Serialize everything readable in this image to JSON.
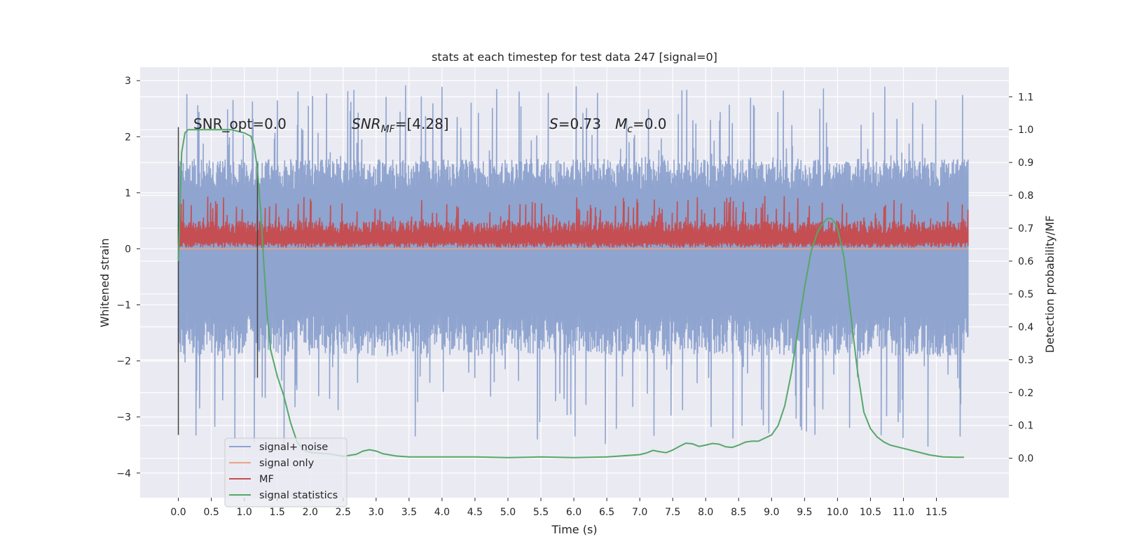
{
  "chart_data": {
    "type": "line",
    "title": "stats at each timestep for test data 247 [signal=0]",
    "xlabel": "Time (s)",
    "ylabel": "Whitened strain",
    "y2label": "Detection probability/MF",
    "xlim": [
      -0.58,
      12.6
    ],
    "ylim": [
      -4.44,
      3.24
    ],
    "y2lim": [
      -0.12,
      1.19
    ],
    "x_ticks": [
      0.0,
      0.5,
      1.0,
      1.5,
      2.0,
      2.5,
      3.0,
      3.5,
      4.0,
      4.5,
      5.0,
      5.5,
      6.0,
      6.5,
      7.0,
      7.5,
      8.0,
      8.5,
      9.0,
      9.5,
      10.0,
      10.5,
      11.0,
      11.5
    ],
    "y_ticks": [
      -4,
      -3,
      -2,
      -1,
      0,
      1,
      2,
      3
    ],
    "y_tick_labels": [
      "−4",
      "−3",
      "−2",
      "−1",
      "0",
      "1",
      "2",
      "3"
    ],
    "y2_ticks": [
      0.0,
      0.1,
      0.2,
      0.3,
      0.4,
      0.5,
      0.6,
      0.7,
      0.8,
      0.9,
      1.0,
      1.1
    ],
    "grid": true,
    "legend_position": "lower-left",
    "background": "#EAEAF2",
    "annotations": {
      "snr_opt": "SNR_opt=0.0",
      "snr_mf_base": "SNR",
      "snr_mf_sub": "MF",
      "snr_mf_rest": "=[4.28]",
      "s_base": "S",
      "s_rest": "=0.73",
      "mc_base": "M",
      "mc_sub": "c",
      "mc_rest": "=0.0"
    },
    "vlines": [
      {
        "x": 0.0,
        "y0": -3.32,
        "y1": 2.17
      },
      {
        "x": 1.2,
        "y0": -2.3,
        "y1": 1.52
      }
    ],
    "series": [
      {
        "name": "signal+ noise",
        "color": "#8FA4CF",
        "x_range": [
          0.0,
          11.98
        ],
        "typical_range": [
          -1.9,
          1.6
        ],
        "spike_range": [
          -3.6,
          2.92
        ]
      },
      {
        "name": "signal only",
        "color": "#E9A585",
        "x": [
          0.0,
          11.98
        ],
        "y": [
          0.0,
          0.0
        ]
      },
      {
        "name": "MF",
        "color": "#C44E52",
        "x_range": [
          0.0,
          11.98
        ],
        "typical_range": [
          0.02,
          0.5
        ],
        "spike_max": 0.95
      },
      {
        "name": "signal statistics",
        "color": "#55A868",
        "axis": "right",
        "x": [
          0.0,
          0.05,
          0.1,
          0.15,
          0.2,
          0.3,
          0.5,
          0.8,
          1.0,
          1.1,
          1.15,
          1.2,
          1.25,
          1.3,
          1.35,
          1.4,
          1.5,
          1.6,
          1.7,
          1.8,
          1.9,
          2.0,
          2.1,
          2.3,
          2.5,
          2.7,
          2.8,
          2.9,
          3.0,
          3.1,
          3.3,
          3.5,
          4.0,
          4.5,
          5.0,
          5.5,
          6.0,
          6.5,
          7.0,
          7.1,
          7.2,
          7.3,
          7.4,
          7.5,
          7.6,
          7.7,
          7.8,
          7.9,
          8.0,
          8.1,
          8.2,
          8.3,
          8.4,
          8.5,
          8.6,
          8.7,
          8.8,
          9.0,
          9.1,
          9.2,
          9.3,
          9.4,
          9.5,
          9.6,
          9.7,
          9.8,
          9.85,
          9.9,
          9.95,
          10.0,
          10.1,
          10.2,
          10.3,
          10.4,
          10.5,
          10.6,
          10.7,
          10.8,
          11.0,
          11.2,
          11.4,
          11.6,
          11.8,
          11.92
        ],
        "y": [
          0.6,
          0.93,
          0.99,
          1.0,
          1.0,
          1.0,
          1.0,
          1.0,
          0.99,
          0.98,
          0.95,
          0.88,
          0.75,
          0.58,
          0.43,
          0.33,
          0.25,
          0.19,
          0.11,
          0.05,
          0.025,
          0.018,
          0.016,
          0.013,
          0.006,
          0.012,
          0.022,
          0.026,
          0.022,
          0.014,
          0.007,
          0.004,
          0.004,
          0.004,
          0.002,
          0.004,
          0.002,
          0.004,
          0.011,
          0.016,
          0.024,
          0.02,
          0.017,
          0.025,
          0.036,
          0.046,
          0.044,
          0.036,
          0.04,
          0.045,
          0.043,
          0.035,
          0.033,
          0.04,
          0.049,
          0.052,
          0.052,
          0.071,
          0.1,
          0.16,
          0.26,
          0.39,
          0.52,
          0.63,
          0.69,
          0.72,
          0.73,
          0.73,
          0.72,
          0.7,
          0.61,
          0.44,
          0.27,
          0.14,
          0.09,
          0.065,
          0.05,
          0.04,
          0.03,
          0.02,
          0.01,
          0.004,
          0.003,
          0.003
        ]
      }
    ]
  }
}
